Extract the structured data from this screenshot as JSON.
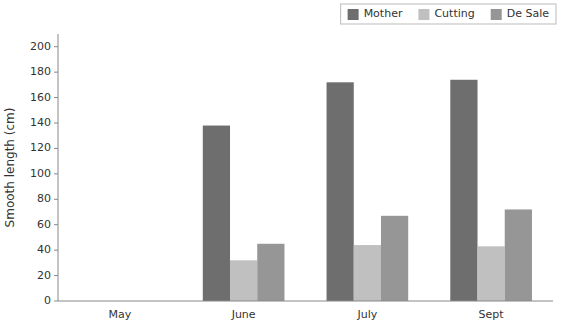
{
  "chart_data": {
    "type": "bar",
    "categories": [
      "May",
      "June",
      "July",
      "Sept"
    ],
    "series": [
      {
        "name": "Mother",
        "color": "#6e6e6e",
        "values": [
          0,
          138,
          172,
          174
        ]
      },
      {
        "name": "Cutting",
        "color": "#c0c0c0",
        "values": [
          0,
          32,
          44,
          43
        ]
      },
      {
        "name": "De Sale",
        "color": "#969696",
        "values": [
          0,
          45,
          67,
          72
        ]
      }
    ],
    "ylabel": "Smooth length (cm)",
    "ylim": [
      0,
      210
    ],
    "yticks": [
      0,
      20,
      40,
      60,
      80,
      100,
      120,
      140,
      160,
      180,
      200
    ],
    "grid": false,
    "legend": "upper right"
  }
}
